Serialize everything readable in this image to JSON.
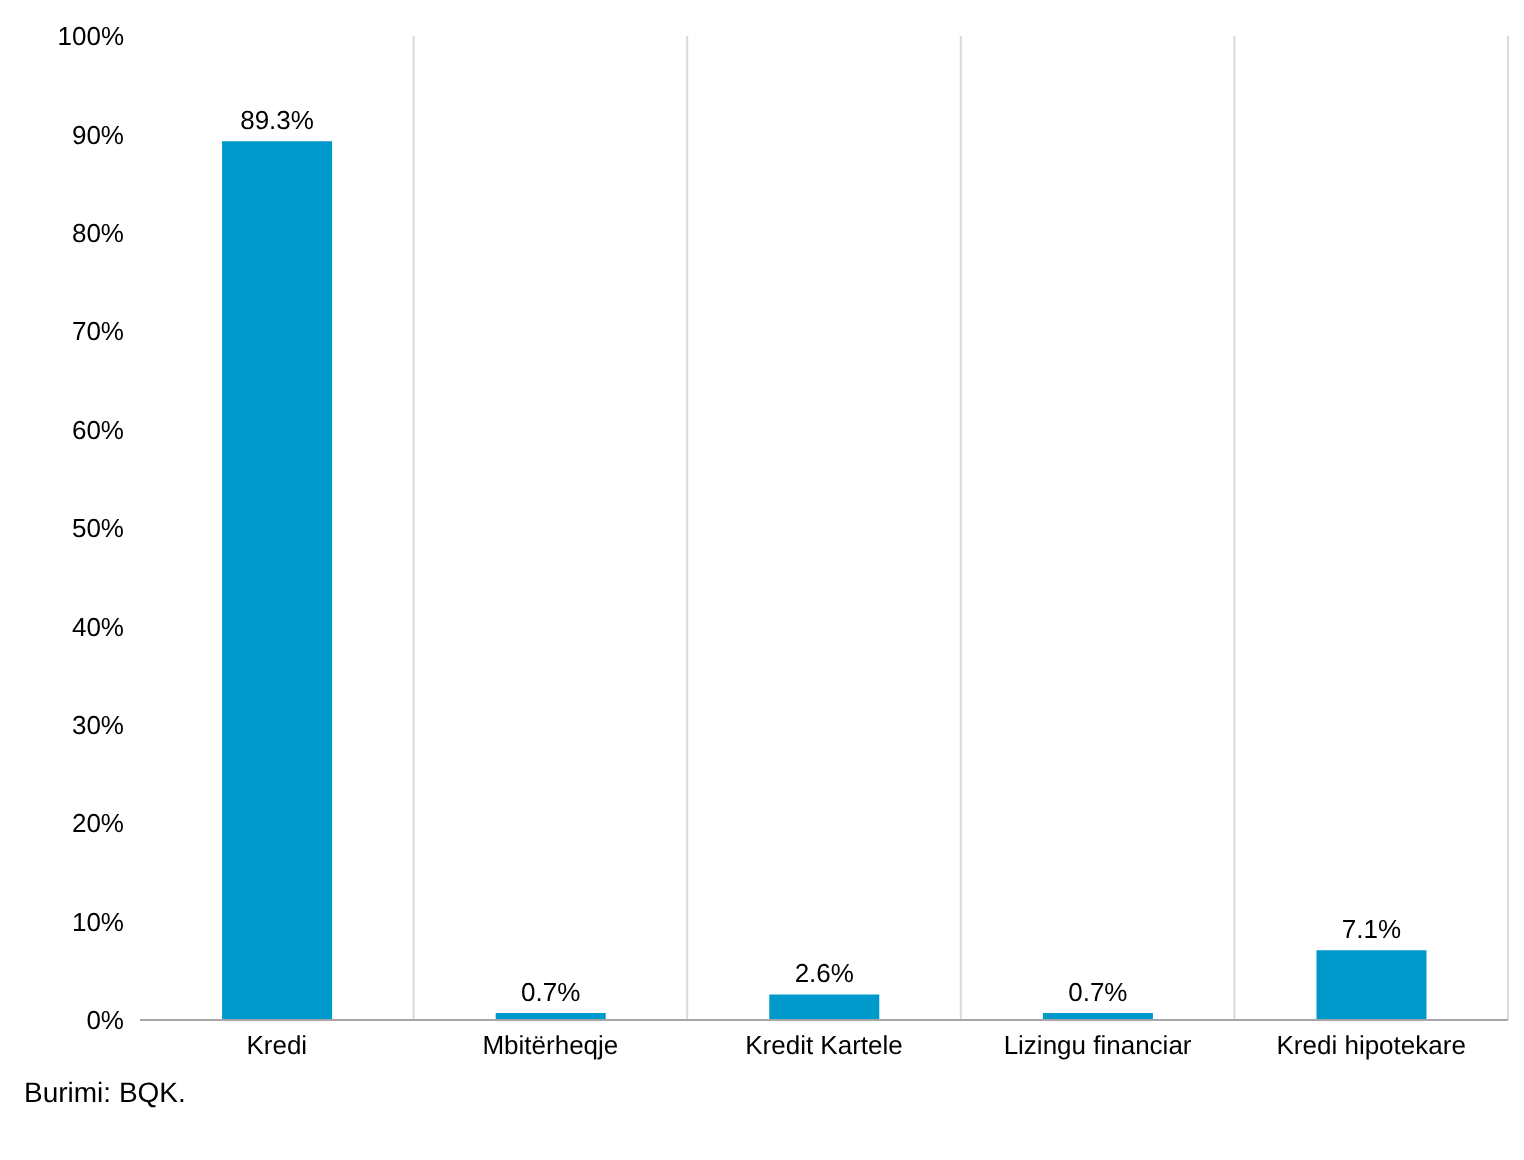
{
  "chart_data": {
    "type": "bar",
    "categories": [
      "Kredi",
      "Mbitërheqje",
      "Kredit Kartele",
      "Lizingu financiar",
      "Kredi hipotekare"
    ],
    "values": [
      89.3,
      0.7,
      2.6,
      0.7,
      7.1
    ],
    "value_labels": [
      "89.3%",
      "0.7%",
      "2.6%",
      "0.7%",
      "7.1%"
    ],
    "color": "#0099cc",
    "ylim": [
      0,
      100
    ],
    "yticks": [
      {
        "value": 0,
        "label": "0%"
      },
      {
        "value": 10,
        "label": "10%"
      },
      {
        "value": 20,
        "label": "20%"
      },
      {
        "value": 30,
        "label": "30%"
      },
      {
        "value": 40,
        "label": "40%"
      },
      {
        "value": 50,
        "label": "50%"
      },
      {
        "value": 60,
        "label": "60%"
      },
      {
        "value": 70,
        "label": "70%"
      },
      {
        "value": 80,
        "label": "80%"
      },
      {
        "value": 90,
        "label": "90%"
      },
      {
        "value": 100,
        "label": "100%"
      }
    ],
    "grid": "x",
    "annotations": [
      "Burimi: BQK."
    ]
  }
}
